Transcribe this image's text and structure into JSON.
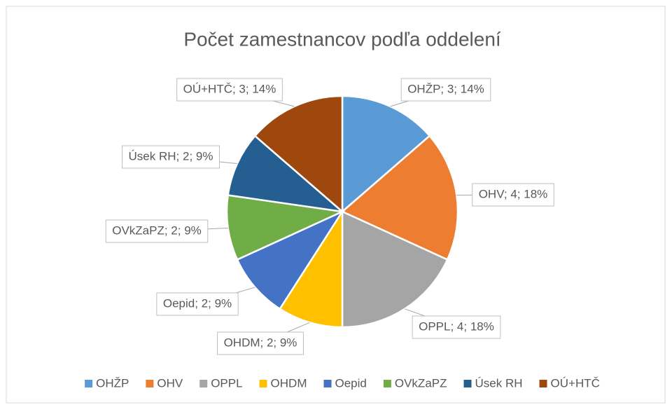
{
  "chart_data": {
    "type": "pie",
    "title": "Počet zamestnancov podľa oddelení",
    "categories": [
      "OHŽP",
      "OHV",
      "OPPL",
      "OHDM",
      "Oepid",
      "OVkZaPZ",
      "Úsek RH",
      "OÚ+HTČ"
    ],
    "values": [
      3,
      4,
      4,
      2,
      2,
      2,
      2,
      3
    ],
    "value_labels": [
      "OHŽP; 3; 14%",
      "OHV; 4; 18%",
      "OPPL; 4; 18%",
      "OHDM; 2; 9%",
      "Oepid; 2; 9%",
      "OVkZaPZ; 2; 9%",
      "Úsek RH; 2; 9%",
      "OÚ+HTČ; 3; 14%"
    ],
    "colors": [
      "#5b9bd5",
      "#ed7d31",
      "#a5a5a5",
      "#ffc000",
      "#4472c4",
      "#70ad47",
      "#255e91",
      "#9e480e"
    ],
    "legend": "bottom"
  }
}
